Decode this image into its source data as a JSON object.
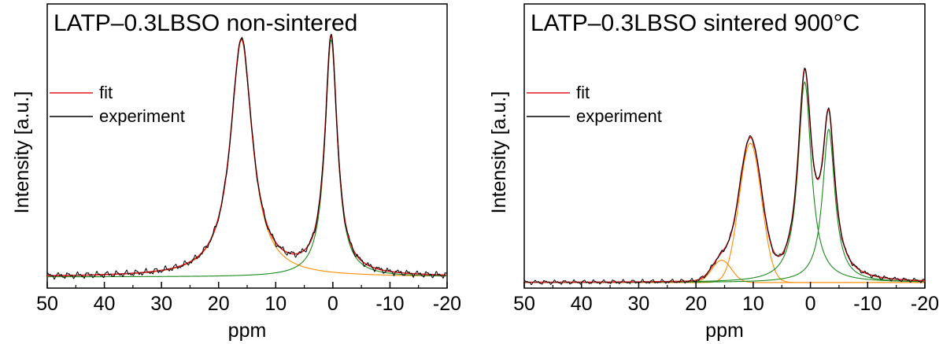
{
  "chart_data": [
    {
      "type": "line",
      "title": "LATP–0.3LBSO non-sintered",
      "xlabel": "ppm",
      "ylabel": "Intensity [a.u.]",
      "xlim": [
        50,
        -20
      ],
      "ylim": [
        0,
        1.02
      ],
      "x_reversed": true,
      "x_ticks": [
        50,
        40,
        30,
        20,
        10,
        0,
        -10,
        -20
      ],
      "x_tick_labels": [
        "50",
        "40",
        "30",
        "20",
        "10",
        "0",
        "-10",
        "-20"
      ],
      "y_ticks_shown": false,
      "legend": {
        "placement": "upper-left",
        "entries": [
          {
            "label": "fit",
            "color": "#e8191e"
          },
          {
            "label": "experiment",
            "color": "#000000"
          }
        ]
      },
      "baseline": 0.04,
      "components": [
        {
          "kind": "lorentz",
          "center": 16.0,
          "fwhm": 4.6,
          "height": 0.85,
          "color": "#ff8c00"
        },
        {
          "kind": "lorentz",
          "center": 0.3,
          "fwhm": 2.6,
          "height": 0.85,
          "color": "#1a8a1a"
        }
      ],
      "series": [
        {
          "name": "fit",
          "color": "#e8191e",
          "role": "fit"
        },
        {
          "name": "experiment",
          "color": "#000000",
          "role": "experiment",
          "noise": 0.012
        }
      ]
    },
    {
      "type": "line",
      "title": "LATP–0.3LBSO sintered 900°C",
      "xlabel": "ppm",
      "ylabel": "Intensity [a.u.]",
      "xlim": [
        50,
        -20
      ],
      "ylim": [
        0,
        1.02
      ],
      "x_reversed": true,
      "x_ticks": [
        50,
        40,
        30,
        20,
        10,
        0,
        -10,
        -20
      ],
      "x_tick_labels": [
        "50",
        "40",
        "30",
        "20",
        "10",
        "0",
        "-10",
        "-20"
      ],
      "y_ticks_shown": false,
      "legend": {
        "placement": "upper-left",
        "entries": [
          {
            "label": "fit",
            "color": "#e8191e"
          },
          {
            "label": "experiment",
            "color": "#000000"
          }
        ]
      },
      "baseline": 0.02,
      "components": [
        {
          "kind": "gauss",
          "center": 10.5,
          "fwhm": 4.6,
          "height": 0.5,
          "color": "#ff8c00"
        },
        {
          "kind": "gauss",
          "center": 15.5,
          "fwhm": 4.0,
          "height": 0.08,
          "color": "#ff8c00"
        },
        {
          "kind": "lorentz",
          "center": 1.0,
          "fwhm": 2.8,
          "height": 0.72,
          "color": "#1a8a1a"
        },
        {
          "kind": "lorentz",
          "center": -3.2,
          "fwhm": 2.6,
          "height": 0.55,
          "color": "#1a8a1a"
        }
      ],
      "series": [
        {
          "name": "fit",
          "color": "#e8191e",
          "role": "fit"
        },
        {
          "name": "experiment",
          "color": "#000000",
          "role": "experiment",
          "noise": 0.008
        }
      ]
    }
  ]
}
